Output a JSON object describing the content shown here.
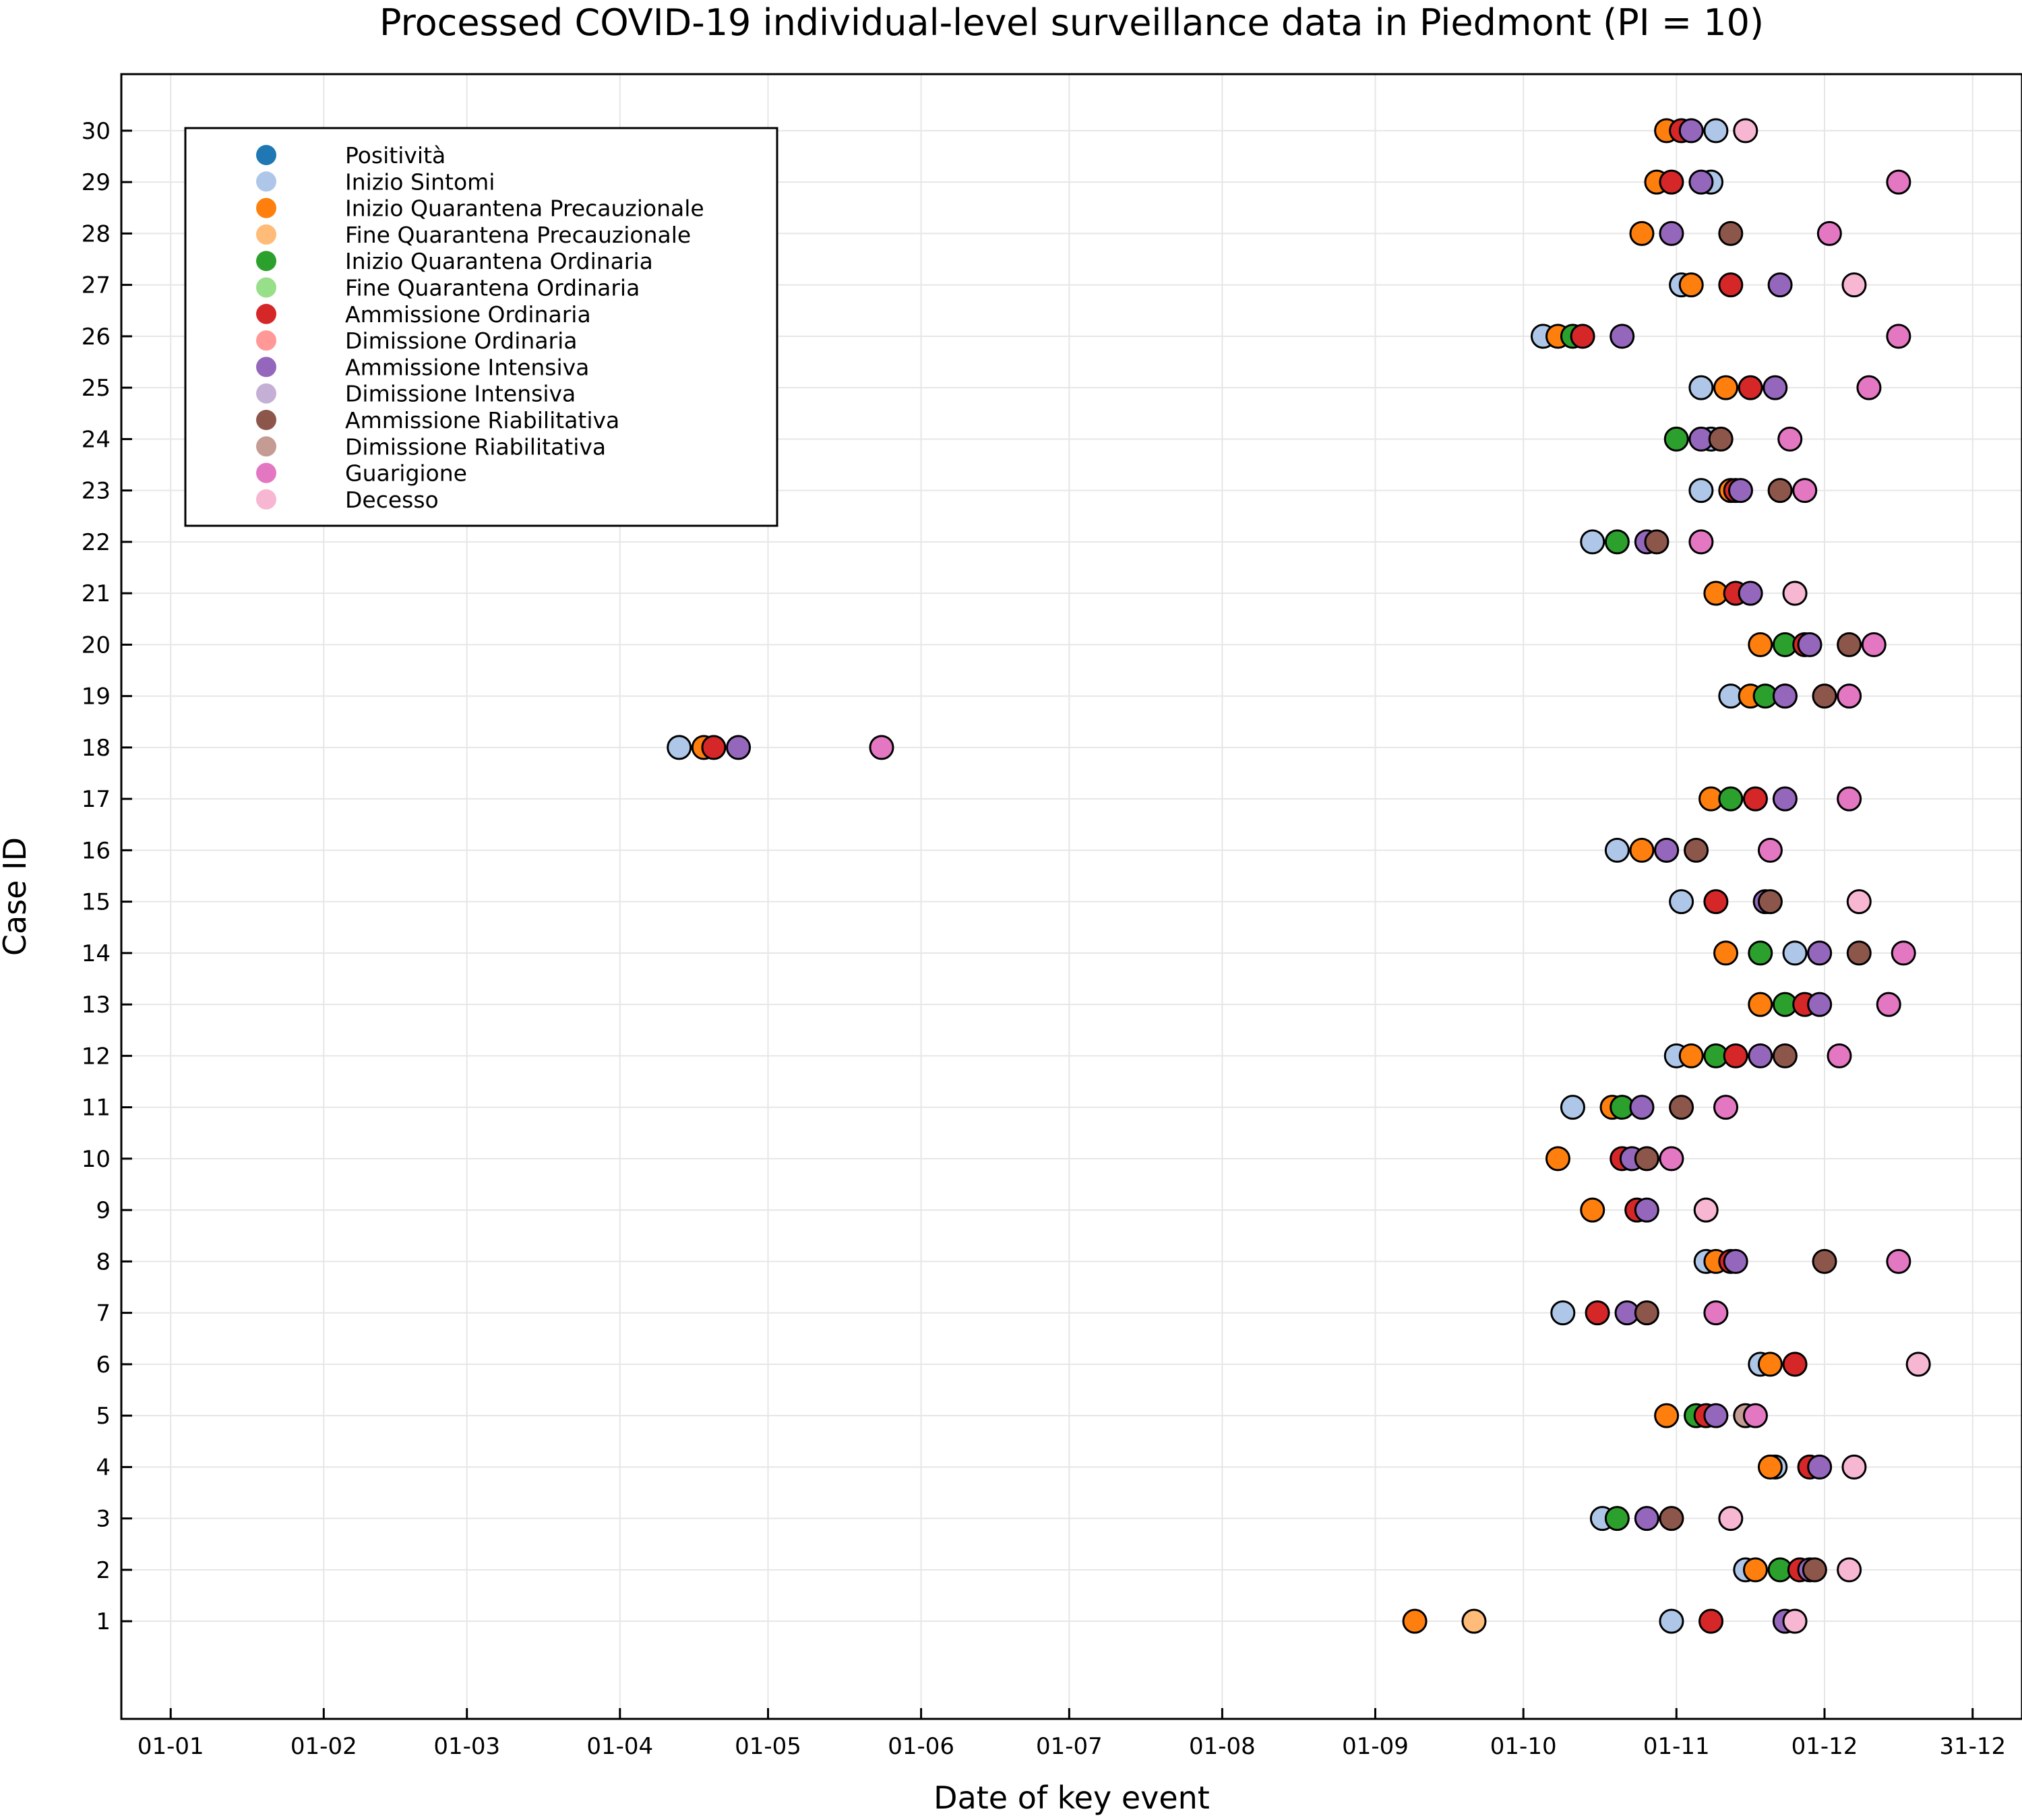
{
  "chart_data": {
    "type": "scatter",
    "title": "Processed COVID-19 individual-level surveillance data in Piedmont (PI = 10)",
    "xlabel": "Date of key event",
    "ylabel": "Case ID",
    "x_ticks": [
      "01-01",
      "01-02",
      "01-03",
      "01-04",
      "01-05",
      "01-06",
      "01-07",
      "01-08",
      "01-09",
      "01-10",
      "01-11",
      "01-12",
      "31-12"
    ],
    "x_tick_dates": [
      "2020-01-01",
      "2020-02-01",
      "2020-03-01",
      "2020-04-01",
      "2020-05-01",
      "2020-06-01",
      "2020-07-01",
      "2020-08-01",
      "2020-09-01",
      "2020-10-01",
      "2020-11-01",
      "2020-12-01",
      "2020-12-31"
    ],
    "y_ticks": [
      1,
      2,
      3,
      4,
      5,
      6,
      7,
      8,
      9,
      10,
      11,
      12,
      13,
      14,
      15,
      16,
      17,
      18,
      19,
      20,
      21,
      22,
      23,
      24,
      25,
      26,
      27,
      28,
      29,
      30
    ],
    "xlim": [
      "2019-12-22",
      "2021-01-10"
    ],
    "ylim": [
      -0.9,
      31.1
    ],
    "grid": true,
    "legend_position": "top-left",
    "series": [
      {
        "name": "Positività",
        "color": "#1f77b4",
        "points": []
      },
      {
        "name": "Inizio Sintomi",
        "color": "#aec7e8",
        "points": [
          [
            "2020-11-09",
            30
          ],
          [
            "2020-11-08",
            29
          ],
          [
            "2020-11-02",
            27
          ],
          [
            "2020-10-05",
            26
          ],
          [
            "2020-11-06",
            25
          ],
          [
            "2020-11-08",
            24
          ],
          [
            "2020-11-06",
            23
          ],
          [
            "2020-10-15",
            22
          ],
          [
            "2020-11-12",
            19
          ],
          [
            "2020-04-13",
            18
          ],
          [
            "2020-10-20",
            16
          ],
          [
            "2020-11-02",
            15
          ],
          [
            "2020-11-25",
            14
          ],
          [
            "2020-11-01",
            12
          ],
          [
            "2020-10-11",
            11
          ],
          [
            "2020-11-07",
            8
          ],
          [
            "2020-10-09",
            7
          ],
          [
            "2020-11-18",
            6
          ],
          [
            "2020-11-21",
            4
          ],
          [
            "2020-10-17",
            3
          ],
          [
            "2020-11-15",
            2
          ],
          [
            "2020-10-31",
            1
          ]
        ]
      },
      {
        "name": "Inizio Quarantena Precauzionale",
        "color": "#ff7f0e",
        "points": [
          [
            "2020-10-30",
            30
          ],
          [
            "2020-10-28",
            29
          ],
          [
            "2020-10-25",
            28
          ],
          [
            "2020-11-04",
            27
          ],
          [
            "2020-10-08",
            26
          ],
          [
            "2020-11-11",
            25
          ],
          [
            "2020-11-12",
            23
          ],
          [
            "2020-11-09",
            21
          ],
          [
            "2020-11-18",
            20
          ],
          [
            "2020-11-16",
            19
          ],
          [
            "2020-04-18",
            18
          ],
          [
            "2020-11-08",
            17
          ],
          [
            "2020-10-25",
            16
          ],
          [
            "2020-11-11",
            14
          ],
          [
            "2020-11-18",
            13
          ],
          [
            "2020-11-04",
            12
          ],
          [
            "2020-10-19",
            11
          ],
          [
            "2020-10-08",
            10
          ],
          [
            "2020-10-15",
            9
          ],
          [
            "2020-11-09",
            8
          ],
          [
            "2020-11-20",
            6
          ],
          [
            "2020-10-30",
            5
          ],
          [
            "2020-11-20",
            4
          ],
          [
            "2020-11-17",
            2
          ],
          [
            "2020-09-09",
            1
          ]
        ]
      },
      {
        "name": "Fine Quarantena Precauzionale",
        "color": "#ffbb78",
        "points": [
          [
            "2020-09-21",
            1
          ]
        ]
      },
      {
        "name": "Inizio Quarantena Ordinaria",
        "color": "#2ca02c",
        "points": [
          [
            "2020-10-11",
            26
          ],
          [
            "2020-11-01",
            24
          ],
          [
            "2020-10-20",
            22
          ],
          [
            "2020-11-23",
            20
          ],
          [
            "2020-11-19",
            19
          ],
          [
            "2020-11-12",
            17
          ],
          [
            "2020-10-30",
            16
          ],
          [
            "2020-11-18",
            14
          ],
          [
            "2020-11-23",
            13
          ],
          [
            "2020-11-09",
            12
          ],
          [
            "2020-10-21",
            11
          ],
          [
            "2020-11-05",
            5
          ],
          [
            "2020-10-20",
            3
          ],
          [
            "2020-11-22",
            2
          ]
        ]
      },
      {
        "name": "Fine Quarantena Ordinaria",
        "color": "#98df8a",
        "points": []
      },
      {
        "name": "Ammissione Ordinaria",
        "color": "#d62728",
        "points": [
          [
            "2020-11-02",
            30
          ],
          [
            "2020-10-31",
            29
          ],
          [
            "2020-11-12",
            27
          ],
          [
            "2020-10-13",
            26
          ],
          [
            "2020-11-16",
            25
          ],
          [
            "2020-11-13",
            23
          ],
          [
            "2020-11-13",
            21
          ],
          [
            "2020-11-27",
            20
          ],
          [
            "2020-11-23",
            19
          ],
          [
            "2020-04-20",
            18
          ],
          [
            "2020-11-17",
            17
          ],
          [
            "2020-11-09",
            15
          ],
          [
            "2020-11-27",
            13
          ],
          [
            "2020-11-13",
            12
          ],
          [
            "2020-10-21",
            10
          ],
          [
            "2020-10-24",
            9
          ],
          [
            "2020-11-12",
            8
          ],
          [
            "2020-10-16",
            7
          ],
          [
            "2020-11-25",
            6
          ],
          [
            "2020-11-07",
            5
          ],
          [
            "2020-11-28",
            4
          ],
          [
            "2020-11-26",
            2
          ],
          [
            "2020-11-08",
            1
          ]
        ]
      },
      {
        "name": "Dimissione Ordinaria",
        "color": "#ff9896",
        "points": []
      },
      {
        "name": "Ammissione Intensiva",
        "color": "#9467bd",
        "points": [
          [
            "2020-11-04",
            30
          ],
          [
            "2020-11-06",
            29
          ],
          [
            "2020-10-31",
            28
          ],
          [
            "2020-11-22",
            27
          ],
          [
            "2020-10-21",
            26
          ],
          [
            "2020-11-21",
            25
          ],
          [
            "2020-11-06",
            24
          ],
          [
            "2020-11-14",
            23
          ],
          [
            "2020-10-26",
            22
          ],
          [
            "2020-11-16",
            21
          ],
          [
            "2020-11-28",
            20
          ],
          [
            "2020-11-23",
            19
          ],
          [
            "2020-04-25",
            18
          ],
          [
            "2020-11-23",
            17
          ],
          [
            "2020-10-30",
            16
          ],
          [
            "2020-11-19",
            15
          ],
          [
            "2020-11-30",
            14
          ],
          [
            "2020-11-30",
            13
          ],
          [
            "2020-11-18",
            12
          ],
          [
            "2020-10-25",
            11
          ],
          [
            "2020-10-23",
            10
          ],
          [
            "2020-10-26",
            9
          ],
          [
            "2020-11-13",
            8
          ],
          [
            "2020-10-22",
            7
          ],
          [
            "2020-11-09",
            5
          ],
          [
            "2020-11-30",
            4
          ],
          [
            "2020-10-26",
            3
          ],
          [
            "2020-11-28",
            2
          ],
          [
            "2020-11-23",
            1
          ]
        ]
      },
      {
        "name": "Dimissione Intensiva",
        "color": "#c5b0d5",
        "points": []
      },
      {
        "name": "Ammissione Riabilitativa",
        "color": "#8c564b",
        "points": [
          [
            "2020-11-12",
            28
          ],
          [
            "2020-11-10",
            24
          ],
          [
            "2020-11-22",
            23
          ],
          [
            "2020-10-28",
            22
          ],
          [
            "2020-12-06",
            20
          ],
          [
            "2020-12-01",
            19
          ],
          [
            "2020-11-05",
            16
          ],
          [
            "2020-11-20",
            15
          ],
          [
            "2020-12-08",
            14
          ],
          [
            "2020-11-23",
            12
          ],
          [
            "2020-11-02",
            11
          ],
          [
            "2020-10-26",
            10
          ],
          [
            "2020-12-01",
            8
          ],
          [
            "2020-10-26",
            7
          ],
          [
            "2020-10-31",
            3
          ],
          [
            "2020-11-29",
            2
          ]
        ]
      },
      {
        "name": "Dimissione Riabilitativa",
        "color": "#c49c94",
        "points": [
          [
            "2020-11-15",
            5
          ]
        ]
      },
      {
        "name": "Guarigione",
        "color": "#e377c2",
        "points": [
          [
            "2020-12-16",
            29
          ],
          [
            "2020-12-02",
            28
          ],
          [
            "2020-12-16",
            26
          ],
          [
            "2020-12-10",
            25
          ],
          [
            "2020-11-24",
            24
          ],
          [
            "2020-11-27",
            23
          ],
          [
            "2020-11-06",
            22
          ],
          [
            "2020-12-11",
            20
          ],
          [
            "2020-12-06",
            19
          ],
          [
            "2020-05-24",
            18
          ],
          [
            "2020-12-06",
            17
          ],
          [
            "2020-11-20",
            16
          ],
          [
            "2020-12-17",
            14
          ],
          [
            "2020-12-14",
            13
          ],
          [
            "2020-12-04",
            12
          ],
          [
            "2020-11-11",
            11
          ],
          [
            "2020-10-31",
            10
          ],
          [
            "2020-12-16",
            8
          ],
          [
            "2020-11-09",
            7
          ],
          [
            "2020-11-17",
            5
          ]
        ]
      },
      {
        "name": "Decesso",
        "color": "#f7b6d2",
        "points": [
          [
            "2020-11-15",
            30
          ],
          [
            "2020-12-07",
            27
          ],
          [
            "2020-11-25",
            21
          ],
          [
            "2020-11-07",
            9
          ],
          [
            "2020-12-08",
            15
          ],
          [
            "2020-12-20",
            6
          ],
          [
            "2020-12-07",
            4
          ],
          [
            "2020-11-12",
            3
          ],
          [
            "2020-12-06",
            2
          ],
          [
            "2020-11-25",
            1
          ]
        ]
      }
    ]
  }
}
